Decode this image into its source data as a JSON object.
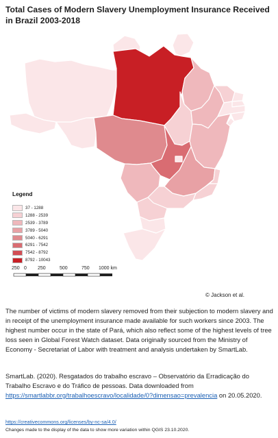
{
  "title": "Total Cases of Modern Slavery Unemployment Insurance Received in Brazil 2003-2018",
  "legend": {
    "title": "Legend",
    "items": [
      {
        "label": "37 - 1288",
        "color": "#fbe6e8"
      },
      {
        "label": "1288 - 2539",
        "color": "#f6d1d4"
      },
      {
        "label": "2539 - 3789",
        "color": "#efb8bc"
      },
      {
        "label": "3789 - 5040",
        "color": "#e8a1a5"
      },
      {
        "label": "5040 - 6291",
        "color": "#df8a8e"
      },
      {
        "label": "6291 - 7542",
        "color": "#d96c72"
      },
      {
        "label": "7542 - 8792",
        "color": "#d24e55"
      },
      {
        "label": "8792 - 10043",
        "color": "#c81f25"
      }
    ]
  },
  "scalebar": {
    "labels": [
      "250",
      "0",
      "250",
      "500",
      "750",
      "1000 km"
    ]
  },
  "copyright": "© Jackson et al.",
  "description": "The number of victims of modern slavery removed from their subjection to modern slavery and in receipt of the unemployment insurance made available for such workers since 2003. The highest number occur in the state of Pará, which also reflect some of the highest levels of tree loss seen in Global Forest Watch dataset. Data originally sourced from the Ministry of Economy - Secretariat of Labor with treatment and analysis undertaken by SmartLab.",
  "citation": {
    "text": "SmartLab. (2020). Resgatados do trabalho escravo – Observatório da Erradicação do Trabalho Escravo e do Tráfico de pessoas. Data downloaded from",
    "link": "https://smartlabbr.org/trabalhoescravo/localidade/0?dimensao=prevalencia",
    "date": "on 20.05.2020."
  },
  "license": "https://creativecommons.org/licenses/by-nc-sa/4.0/",
  "changes": "Changes made to the display of the data to show more variation within QGIS 23.10.2020.",
  "map": {
    "states": [
      {
        "name": "Pará",
        "color": "#c81f25"
      },
      {
        "name": "Amazonas",
        "color": "#fbe6e8"
      },
      {
        "name": "Acre",
        "color": "#fbe6e8"
      },
      {
        "name": "Roraima",
        "color": "#fbe6e8"
      },
      {
        "name": "Amapá",
        "color": "#fbe6e8"
      },
      {
        "name": "Rondônia",
        "color": "#fbe6e8"
      },
      {
        "name": "Mato Grosso",
        "color": "#df8a8e"
      },
      {
        "name": "Goiás",
        "color": "#d96c72"
      },
      {
        "name": "Maranhão",
        "color": "#efb8bc"
      },
      {
        "name": "Tocantins",
        "color": "#f6d1d4"
      },
      {
        "name": "Piauí",
        "color": "#efb8bc"
      },
      {
        "name": "Bahia",
        "color": "#efb8bc"
      },
      {
        "name": "Minas Gerais",
        "color": "#e8a1a5"
      },
      {
        "name": "Mato Grosso do Sul",
        "color": "#efb8bc"
      },
      {
        "name": "São Paulo",
        "color": "#f6d1d4"
      },
      {
        "name": "Paraná",
        "color": "#f6d1d4"
      },
      {
        "name": "Santa Catarina",
        "color": "#fbe6e8"
      },
      {
        "name": "Rio Grande do Sul",
        "color": "#fbe6e8"
      },
      {
        "name": "Rio de Janeiro",
        "color": "#f6d1d4"
      },
      {
        "name": "Espírito Santo",
        "color": "#f6d1d4"
      },
      {
        "name": "Ceará",
        "color": "#f6d1d4"
      },
      {
        "name": "Rio Grande do Norte",
        "color": "#fbe6e8"
      },
      {
        "name": "Paraíba",
        "color": "#fbe6e8"
      },
      {
        "name": "Pernambuco",
        "color": "#fbe6e8"
      },
      {
        "name": "Alagoas",
        "color": "#fbe6e8"
      },
      {
        "name": "Sergipe",
        "color": "#fbe6e8"
      },
      {
        "name": "Distrito Federal",
        "color": "#fbe6e8"
      }
    ]
  }
}
